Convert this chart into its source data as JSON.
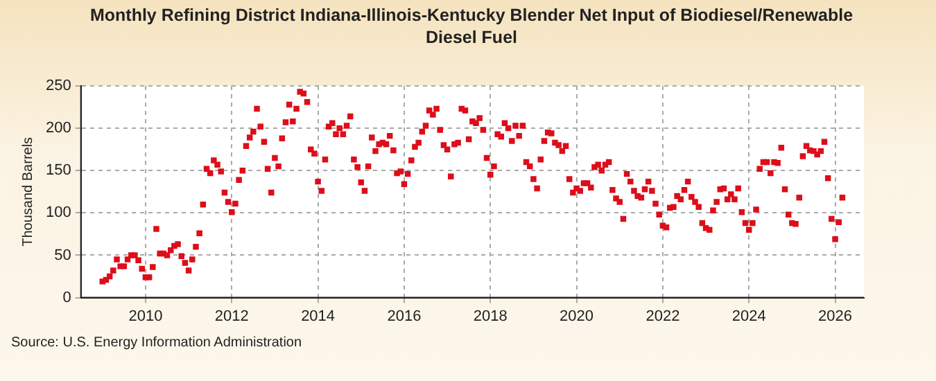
{
  "chart_data": {
    "type": "scatter",
    "title": "Monthly Refining District Indiana-Illinois-Kentucky Blender Net Input of Biodiesel/Renewable Diesel Fuel",
    "ylabel": "Thousand Barrels",
    "annotations": [
      "Source: U.S. Energy Information Administration"
    ],
    "xlim": [
      "2008-07",
      "2026-09"
    ],
    "xticks": [
      "2010",
      "2012",
      "2014",
      "2016",
      "2018",
      "2020",
      "2022",
      "2024",
      "2026"
    ],
    "ylim": [
      0,
      250
    ],
    "yticks": [
      0,
      50,
      100,
      150,
      200,
      250
    ],
    "grid": true,
    "marker": "square",
    "x": [
      "2009-01",
      "2009-02",
      "2009-03",
      "2009-04",
      "2009-05",
      "2009-06",
      "2009-07",
      "2009-08",
      "2009-09",
      "2009-10",
      "2009-11",
      "2009-12",
      "2010-01",
      "2010-02",
      "2010-03",
      "2010-04",
      "2010-05",
      "2010-06",
      "2010-07",
      "2010-08",
      "2010-09",
      "2010-10",
      "2010-11",
      "2010-12",
      "2011-01",
      "2011-02",
      "2011-03",
      "2011-04",
      "2011-05",
      "2011-06",
      "2011-07",
      "2011-08",
      "2011-09",
      "2011-10",
      "2011-11",
      "2011-12",
      "2012-01",
      "2012-02",
      "2012-03",
      "2012-04",
      "2012-05",
      "2012-06",
      "2012-07",
      "2012-08",
      "2012-09",
      "2012-10",
      "2012-11",
      "2012-12",
      "2013-01",
      "2013-02",
      "2013-03",
      "2013-04",
      "2013-05",
      "2013-06",
      "2013-07",
      "2013-08",
      "2013-09",
      "2013-10",
      "2013-11",
      "2013-12",
      "2014-01",
      "2014-02",
      "2014-03",
      "2014-04",
      "2014-05",
      "2014-06",
      "2014-07",
      "2014-08",
      "2014-09",
      "2014-10",
      "2014-11",
      "2014-12",
      "2015-01",
      "2015-02",
      "2015-03",
      "2015-04",
      "2015-05",
      "2015-06",
      "2015-07",
      "2015-08",
      "2015-09",
      "2015-10",
      "2015-11",
      "2015-12",
      "2016-01",
      "2016-02",
      "2016-03",
      "2016-04",
      "2016-05",
      "2016-06",
      "2016-07",
      "2016-08",
      "2016-09",
      "2016-10",
      "2016-11",
      "2016-12",
      "2017-01",
      "2017-02",
      "2017-03",
      "2017-04",
      "2017-05",
      "2017-06",
      "2017-07",
      "2017-08",
      "2017-09",
      "2017-10",
      "2017-11",
      "2017-12",
      "2018-01",
      "2018-02",
      "2018-03",
      "2018-04",
      "2018-05",
      "2018-06",
      "2018-07",
      "2018-08",
      "2018-09",
      "2018-10",
      "2018-11",
      "2018-12",
      "2019-01",
      "2019-02",
      "2019-03",
      "2019-04",
      "2019-05",
      "2019-06",
      "2019-07",
      "2019-08",
      "2019-09",
      "2019-10",
      "2019-11",
      "2019-12",
      "2020-01",
      "2020-02",
      "2020-03",
      "2020-04",
      "2020-05",
      "2020-06",
      "2020-07",
      "2020-08",
      "2020-09",
      "2020-10",
      "2020-11",
      "2020-12",
      "2021-01",
      "2021-02",
      "2021-03",
      "2021-04",
      "2021-05",
      "2021-06",
      "2021-07",
      "2021-08",
      "2021-09",
      "2021-10",
      "2021-11",
      "2021-12",
      "2022-01",
      "2022-02",
      "2022-03",
      "2022-04",
      "2022-05",
      "2022-06",
      "2022-07",
      "2022-08",
      "2022-09",
      "2022-10",
      "2022-11",
      "2022-12",
      "2023-01",
      "2023-02",
      "2023-03",
      "2023-04",
      "2023-05",
      "2023-06",
      "2023-07",
      "2023-08",
      "2023-09",
      "2023-10",
      "2023-11",
      "2023-12",
      "2024-01",
      "2024-02",
      "2024-03",
      "2024-04",
      "2024-05",
      "2024-06",
      "2024-07",
      "2024-08",
      "2024-09",
      "2024-10",
      "2024-11",
      "2024-12",
      "2025-01",
      "2025-02",
      "2025-03",
      "2025-04",
      "2025-05",
      "2025-06",
      "2025-07",
      "2025-08",
      "2025-09",
      "2025-10",
      "2025-11",
      "2025-12",
      "2026-01",
      "2026-02",
      "2026-03"
    ],
    "series": [
      {
        "color": "#dd0d1a",
        "values": [
          19,
          21,
          25,
          32,
          45,
          37,
          37,
          45,
          50,
          50,
          44,
          34,
          24,
          24,
          36,
          81,
          52,
          52,
          50,
          56,
          61,
          63,
          49,
          41,
          32,
          45,
          60,
          76,
          110,
          152,
          147,
          162,
          157,
          149,
          124,
          113,
          101,
          111,
          139,
          150,
          179,
          189,
          196,
          223,
          202,
          184,
          152,
          124,
          165,
          155,
          188,
          207,
          228,
          208,
          223,
          243,
          241,
          231,
          175,
          170,
          137,
          126,
          163,
          202,
          206,
          193,
          200,
          193,
          203,
          214,
          163,
          154,
          136,
          126,
          155,
          189,
          173,
          181,
          183,
          181,
          191,
          174,
          147,
          149,
          134,
          146,
          162,
          178,
          183,
          196,
          203,
          221,
          216,
          223,
          198,
          180,
          175,
          143,
          181,
          183,
          223,
          221,
          187,
          208,
          206,
          212,
          198,
          165,
          145,
          155,
          193,
          190,
          206,
          200,
          185,
          203,
          191,
          203,
          160,
          155,
          140,
          129,
          163,
          185,
          195,
          194,
          183,
          180,
          173,
          179,
          140,
          124,
          129,
          126,
          135,
          135,
          130,
          154,
          157,
          150,
          157,
          160,
          127,
          117,
          113,
          93,
          146,
          137,
          126,
          120,
          118,
          128,
          137,
          126,
          111,
          98,
          85,
          83,
          106,
          107,
          120,
          116,
          127,
          137,
          119,
          113,
          107,
          88,
          82,
          80,
          103,
          113,
          128,
          129,
          116,
          122,
          116,
          129,
          101,
          88,
          80,
          88,
          104,
          152,
          160,
          160,
          147,
          160,
          159,
          177,
          128,
          98,
          88,
          87,
          118,
          167,
          179,
          174,
          173,
          169,
          173,
          184,
          141,
          93,
          69,
          89,
          118
        ]
      }
    ]
  }
}
